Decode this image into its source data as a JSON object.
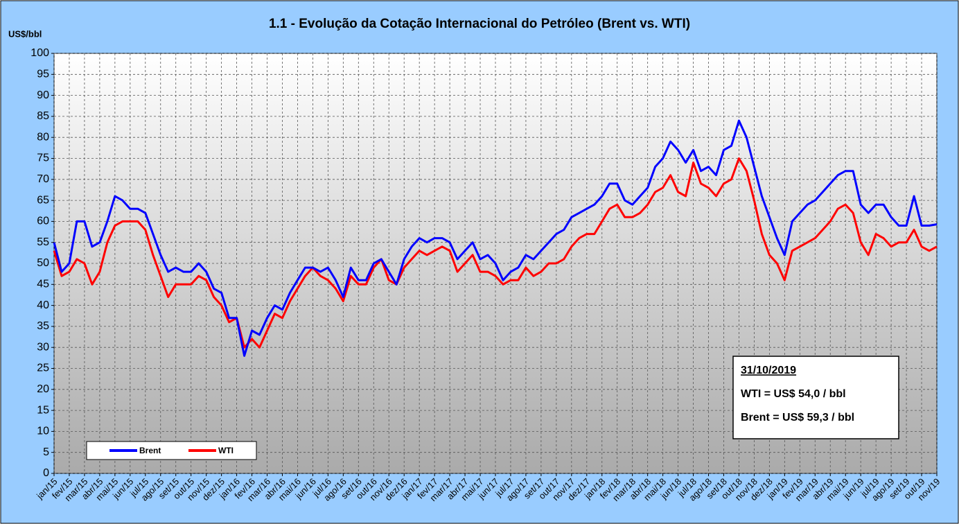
{
  "chart_data": {
    "type": "line",
    "title": "1.1 - Evolução da Cotação Internacional do Petróleo (Brent vs. WTI)",
    "y_label": "US$/bbl",
    "grid": true,
    "legend": "lower-left",
    "annotations": [
      "31/10/2019",
      "WTI = US$ 54,0 / bbl",
      "Brent = US$ 59,3 / bbl"
    ],
    "xlim": [
      0,
      58
    ],
    "xticks": [
      {
        "value": 0,
        "label": "jan/15"
      },
      {
        "value": 1,
        "label": "fev/15"
      },
      {
        "value": 2,
        "label": "mar/15"
      },
      {
        "value": 3,
        "label": "abr/15"
      },
      {
        "value": 4,
        "label": "mai/15"
      },
      {
        "value": 5,
        "label": "jun/15"
      },
      {
        "value": 6,
        "label": "jul/15"
      },
      {
        "value": 7,
        "label": "ago/15"
      },
      {
        "value": 8,
        "label": "set/15"
      },
      {
        "value": 9,
        "label": "out/15"
      },
      {
        "value": 10,
        "label": "nov/15"
      },
      {
        "value": 11,
        "label": "dez/15"
      },
      {
        "value": 12,
        "label": "jan/16"
      },
      {
        "value": 13,
        "label": "fev/16"
      },
      {
        "value": 14,
        "label": "mar/16"
      },
      {
        "value": 15,
        "label": "abr/16"
      },
      {
        "value": 16,
        "label": "mai/16"
      },
      {
        "value": 17,
        "label": "jun/16"
      },
      {
        "value": 18,
        "label": "jul/16"
      },
      {
        "value": 19,
        "label": "ago/16"
      },
      {
        "value": 20,
        "label": "set/16"
      },
      {
        "value": 21,
        "label": "out/16"
      },
      {
        "value": 22,
        "label": "nov/16"
      },
      {
        "value": 23,
        "label": "dez/16"
      },
      {
        "value": 24,
        "label": "jan/17"
      },
      {
        "value": 25,
        "label": "fev/17"
      },
      {
        "value": 26,
        "label": "mar/17"
      },
      {
        "value": 27,
        "label": "abr/17"
      },
      {
        "value": 28,
        "label": "mai/17"
      },
      {
        "value": 29,
        "label": "jun/17"
      },
      {
        "value": 30,
        "label": "jul/17"
      },
      {
        "value": 31,
        "label": "ago/17"
      },
      {
        "value": 32,
        "label": "set/17"
      },
      {
        "value": 33,
        "label": "out/17"
      },
      {
        "value": 34,
        "label": "nov/17"
      },
      {
        "value": 35,
        "label": "dez/17"
      },
      {
        "value": 36,
        "label": "jan/18"
      },
      {
        "value": 37,
        "label": "fev/18"
      },
      {
        "value": 38,
        "label": "mar/18"
      },
      {
        "value": 39,
        "label": "abr/18"
      },
      {
        "value": 40,
        "label": "mai/18"
      },
      {
        "value": 41,
        "label": "jun/18"
      },
      {
        "value": 42,
        "label": "jul/18"
      },
      {
        "value": 43,
        "label": "ago/18"
      },
      {
        "value": 44,
        "label": "set/18"
      },
      {
        "value": 45,
        "label": "out/18"
      },
      {
        "value": 46,
        "label": "nov/18"
      },
      {
        "value": 47,
        "label": "dez/18"
      },
      {
        "value": 48,
        "label": "jan/19"
      },
      {
        "value": 49,
        "label": "fev/19"
      },
      {
        "value": 50,
        "label": "mar/19"
      },
      {
        "value": 51,
        "label": "abr/19"
      },
      {
        "value": 52,
        "label": "mai/19"
      },
      {
        "value": 53,
        "label": "jun/19"
      },
      {
        "value": 54,
        "label": "jul/19"
      },
      {
        "value": 55,
        "label": "ago/19"
      },
      {
        "value": 56,
        "label": "set/19"
      },
      {
        "value": 57,
        "label": "out/19"
      },
      {
        "value": 58,
        "label": "nov/19"
      }
    ],
    "ylim": [
      0,
      100
    ],
    "yticks": [
      0,
      5,
      10,
      15,
      20,
      25,
      30,
      35,
      40,
      45,
      50,
      55,
      60,
      65,
      70,
      75,
      80,
      85,
      90,
      95,
      100
    ],
    "x": [
      0,
      0.5,
      1,
      1.5,
      2,
      2.5,
      3,
      3.5,
      4,
      4.5,
      5,
      5.5,
      6,
      6.5,
      7,
      7.5,
      8,
      8.5,
      9,
      9.5,
      10,
      10.5,
      11,
      11.5,
      12,
      12.5,
      13,
      13.5,
      14,
      14.5,
      15,
      15.5,
      16,
      16.5,
      17,
      17.5,
      18,
      18.5,
      19,
      19.5,
      20,
      20.5,
      21,
      21.5,
      22,
      22.5,
      23,
      23.5,
      24,
      24.5,
      25,
      25.5,
      26,
      26.5,
      27,
      27.5,
      28,
      28.5,
      29,
      29.5,
      30,
      30.5,
      31,
      31.5,
      32,
      32.5,
      33,
      33.5,
      34,
      34.5,
      35,
      35.5,
      36,
      36.5,
      37,
      37.5,
      38,
      38.5,
      39,
      39.5,
      40,
      40.5,
      41,
      41.5,
      42,
      42.5,
      43,
      43.5,
      44,
      44.5,
      45,
      45.5,
      46,
      46.5,
      47,
      47.5,
      48,
      48.5,
      49,
      49.5,
      50,
      50.5,
      51,
      51.5,
      52,
      52.5,
      53,
      53.5,
      54,
      54.5,
      55,
      55.5,
      56,
      56.5,
      57,
      57.5,
      58
    ],
    "series": [
      {
        "name": "Brent",
        "color": "#0000ff",
        "values": [
          55,
          48,
          50,
          60,
          60,
          54,
          55,
          60,
          66,
          65,
          63,
          63,
          62,
          57,
          52,
          48,
          49,
          48,
          48,
          50,
          48,
          44,
          43,
          37,
          37,
          28,
          34,
          33,
          37,
          40,
          39,
          43,
          46,
          49,
          49,
          48,
          49,
          46,
          42,
          49,
          46,
          46,
          50,
          51,
          48,
          45,
          51,
          54,
          56,
          55,
          56,
          56,
          55,
          51,
          53,
          55,
          51,
          52,
          50,
          46,
          48,
          49,
          52,
          51,
          53,
          55,
          57,
          58,
          61,
          62,
          63,
          64,
          66,
          69,
          69,
          65,
          64,
          66,
          68,
          73,
          75,
          79,
          77,
          74,
          77,
          72,
          73,
          71,
          77,
          78,
          84,
          80,
          73,
          66,
          61,
          56,
          52,
          60,
          62,
          64,
          65,
          67,
          69,
          71,
          72,
          72,
          64,
          62,
          64,
          64,
          61,
          59,
          59,
          66,
          59,
          59,
          59.3
        ]
      },
      {
        "name": "WTI",
        "color": "#ff0000",
        "values": [
          53,
          47,
          48,
          51,
          50,
          45,
          48,
          55,
          59,
          60,
          60,
          60,
          58,
          52,
          47,
          42,
          45,
          45,
          45,
          47,
          46,
          42,
          40,
          36,
          37,
          30,
          32,
          30,
          34,
          38,
          37,
          41,
          44,
          47,
          49,
          47,
          46,
          44,
          41,
          47,
          45,
          45,
          49,
          51,
          46,
          45,
          49,
          51,
          53,
          52,
          53,
          54,
          53,
          48,
          50,
          52,
          48,
          48,
          47,
          45,
          46,
          46,
          49,
          47,
          48,
          50,
          50,
          51,
          54,
          56,
          57,
          57,
          60,
          63,
          64,
          61,
          61,
          62,
          64,
          67,
          68,
          71,
          67,
          66,
          74,
          69,
          68,
          66,
          69,
          70,
          75,
          72,
          65,
          57,
          52,
          50,
          46,
          53,
          54,
          55,
          56,
          58,
          60,
          63,
          64,
          62,
          55,
          52,
          57,
          56,
          54,
          55,
          55,
          58,
          54,
          53,
          54.0
        ]
      }
    ]
  }
}
